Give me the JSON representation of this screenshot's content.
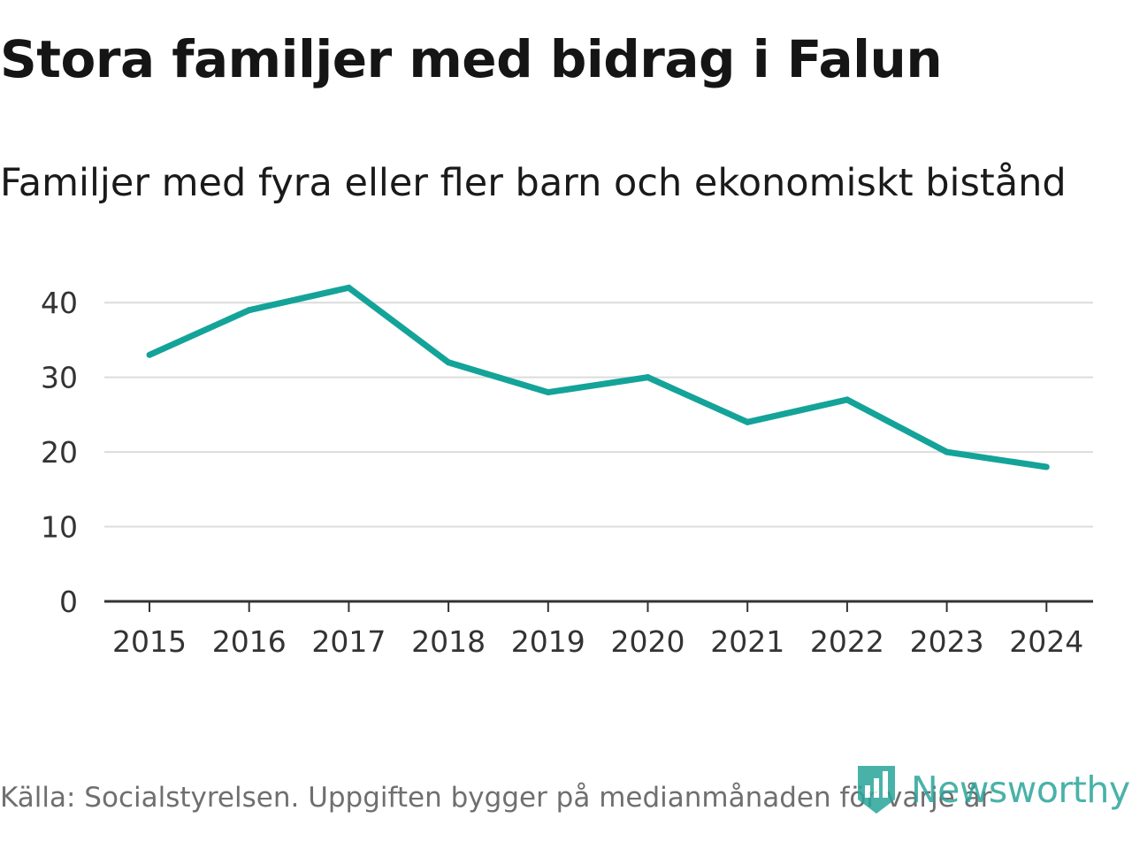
{
  "header": {
    "title": "Stora familjer med bidrag i Falun",
    "subtitle": "Familjer med fyra eller fler barn och ekonomiskt bistånd"
  },
  "chart_data": {
    "type": "line",
    "title": "Stora familjer med bidrag i Falun",
    "subtitle": "Familjer med fyra eller fler barn och ekonomiskt bistånd",
    "categories": [
      "2015",
      "2016",
      "2017",
      "2018",
      "2019",
      "2020",
      "2021",
      "2022",
      "2023",
      "2024"
    ],
    "series": [
      {
        "name": "Familjer med fyra eller fler barn och ekonomiskt bistånd",
        "values": [
          33,
          39,
          42,
          32,
          28,
          30,
          24,
          27,
          20,
          18
        ]
      }
    ],
    "yticks": [
      "0",
      "10",
      "20",
      "30",
      "40"
    ],
    "ylim": [
      0,
      45
    ],
    "xlabel": "",
    "ylabel": "",
    "grid": true,
    "line_color": "#14a399",
    "grid_color": "#dcdcdc",
    "axis_color": "#333333"
  },
  "footer": {
    "source": "Källa: Socialstyrelsen. Uppgiften bygger på medianmånaden för varje år"
  },
  "brand": {
    "name": "Newsworthy",
    "icon": "newsworthy-logo-icon",
    "color": "#2aa59a"
  }
}
